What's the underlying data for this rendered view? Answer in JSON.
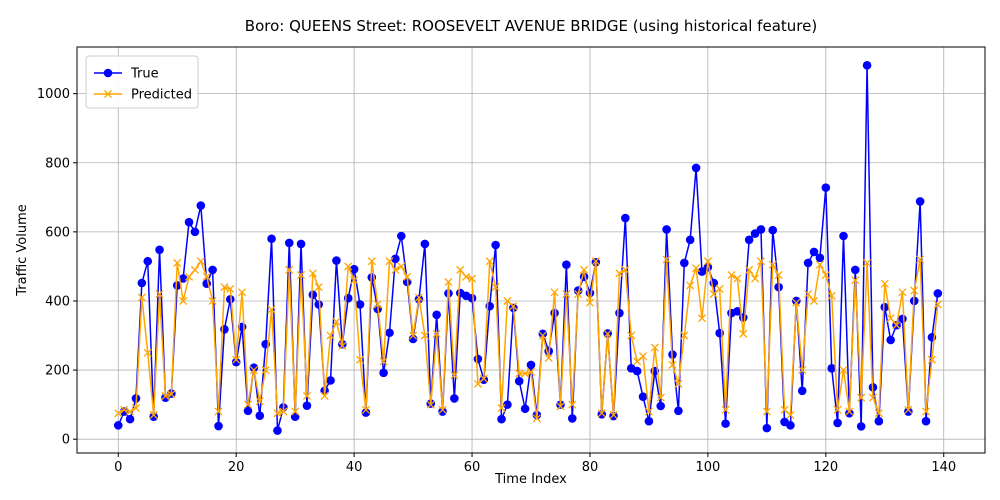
{
  "chart_data": {
    "type": "line",
    "title": "Boro: QUEENS Street: ROOSEVELT AVENUE BRIDGE (using historical feature)",
    "xlabel": "Time Index",
    "ylabel": "Traffic Volume",
    "xlim": [
      -7,
      147
    ],
    "ylim": [
      -40,
      1135
    ],
    "xticks": [
      0,
      20,
      40,
      60,
      80,
      100,
      120,
      140
    ],
    "yticks": [
      0,
      200,
      400,
      600,
      800,
      1000
    ],
    "grid": true,
    "legend_position": "upper-left",
    "series": [
      {
        "name": "True",
        "color": "#0000ff",
        "marker": "circle",
        "values": [
          40,
          80,
          58,
          118,
          452,
          515,
          65,
          548,
          120,
          132,
          445,
          465,
          628,
          600,
          676,
          450,
          490,
          38,
          318,
          405,
          223,
          325,
          82,
          207,
          68,
          275,
          580,
          25,
          92,
          568,
          65,
          565,
          97,
          418,
          390,
          140,
          170,
          517,
          275,
          408,
          492,
          390,
          77,
          468,
          377,
          192,
          308,
          522,
          588,
          455,
          290,
          405,
          565,
          103,
          360,
          80,
          422,
          118,
          423,
          415,
          408,
          232,
          172,
          385,
          562,
          58,
          100,
          380,
          168,
          88,
          215,
          70,
          305,
          255,
          365,
          100,
          505,
          60,
          430,
          470,
          423,
          512,
          72,
          306,
          67,
          365,
          640,
          205,
          197,
          123,
          52,
          197,
          96,
          607,
          245,
          82,
          510,
          577,
          785,
          485,
          498,
          452,
          307,
          45,
          365,
          370,
          352,
          577,
          595,
          607,
          32,
          605,
          440,
          50,
          40,
          400,
          140,
          510,
          542,
          525,
          728,
          205,
          47,
          588,
          75,
          490,
          37,
          1082,
          150,
          52,
          382,
          287,
          330,
          348,
          80,
          400,
          688,
          52,
          295,
          422
        ]
      },
      {
        "name": "Predicted",
        "color": "#ffa500",
        "marker": "x",
        "values": [
          75,
          85,
          80,
          90,
          410,
          250,
          70,
          420,
          125,
          130,
          510,
          400,
          470,
          490,
          515,
          470,
          400,
          80,
          440,
          435,
          230,
          425,
          100,
          200,
          110,
          200,
          375,
          75,
          80,
          490,
          80,
          475,
          125,
          480,
          440,
          125,
          300,
          340,
          270,
          500,
          460,
          230,
          85,
          515,
          390,
          225,
          515,
          490,
          500,
          470,
          300,
          410,
          300,
          100,
          305,
          85,
          455,
          185,
          490,
          470,
          465,
          160,
          175,
          515,
          440,
          90,
          400,
          385,
          190,
          190,
          195,
          60,
          300,
          235,
          425,
          95,
          420,
          100,
          420,
          490,
          395,
          515,
          75,
          305,
          70,
          480,
          490,
          300,
          225,
          240,
          80,
          265,
          120,
          520,
          215,
          160,
          300,
          445,
          495,
          350,
          515,
          420,
          435,
          85,
          475,
          465,
          305,
          490,
          465,
          515,
          80,
          505,
          475,
          85,
          70,
          395,
          200,
          420,
          400,
          505,
          475,
          415,
          85,
          200,
          80,
          460,
          120,
          510,
          120,
          75,
          450,
          350,
          330,
          425,
          85,
          430,
          520,
          80,
          230,
          390
        ]
      }
    ]
  }
}
